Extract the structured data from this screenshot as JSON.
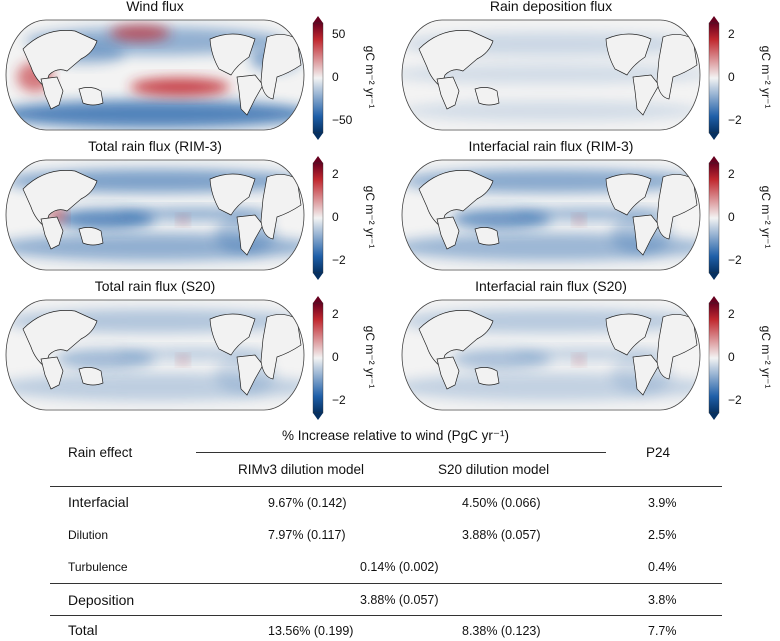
{
  "colors": {
    "neg": "#1f5fa8",
    "pos": "#c0282f",
    "mid": "#f3f3f3",
    "land": "#f2f2f2"
  },
  "panels": [
    {
      "title": "Wind flux",
      "ticks": [
        "50",
        "0",
        "−50"
      ],
      "unit": "gC m⁻² yr⁻¹",
      "vmax": 60,
      "pattern": "wind"
    },
    {
      "title": "Rain deposition flux",
      "ticks": [
        "2",
        "0",
        "−2"
      ],
      "unit": "gC m⁻² yr⁻¹",
      "vmax": 2.5,
      "pattern": "dep"
    },
    {
      "title": "Total rain flux (RIM-3)",
      "ticks": [
        "2",
        "0",
        "−2"
      ],
      "unit": "gC m⁻² yr⁻¹",
      "vmax": 2.5,
      "pattern": "total"
    },
    {
      "title": "Interfacial rain flux (RIM-3)",
      "ticks": [
        "2",
        "0",
        "−2"
      ],
      "unit": "gC m⁻² yr⁻¹",
      "vmax": 2.5,
      "pattern": "inter"
    },
    {
      "title": "Total rain flux (S20)",
      "ticks": [
        "2",
        "0",
        "−2"
      ],
      "unit": "gC m⁻² yr⁻¹",
      "vmax": 2.5,
      "pattern": "s20"
    },
    {
      "title": "Interfacial rain flux (S20)",
      "ticks": [
        "2",
        "0",
        "−2"
      ],
      "unit": "gC m⁻² yr⁻¹",
      "vmax": 2.5,
      "pattern": "inters20"
    }
  ],
  "table": {
    "rain_effect_header": "Rain effect",
    "group_header": "% Increase relative to wind (PgC yr⁻¹)",
    "col1": "RIMv3 dilution model",
    "col2": "S20 dilution model",
    "col3": "P24",
    "rows": [
      {
        "label": "Interfacial",
        "c1": "9.67% (0.142)",
        "c2": "4.50% (0.066)",
        "c3": "3.9%"
      },
      {
        "label": "Dilution",
        "c1": "7.97% (0.117)",
        "c2": "3.88% (0.057)",
        "c3": "2.5%"
      },
      {
        "label": "Turbulence",
        "c12": "0.14% (0.002)",
        "c3": "0.4%"
      },
      {
        "label": "Deposition",
        "c12": "3.88% (0.057)",
        "c3": "3.8%"
      },
      {
        "label": "Total",
        "c1": "13.56% (0.199)",
        "c2": "8.38% (0.123)",
        "c3": "7.7%"
      }
    ]
  }
}
